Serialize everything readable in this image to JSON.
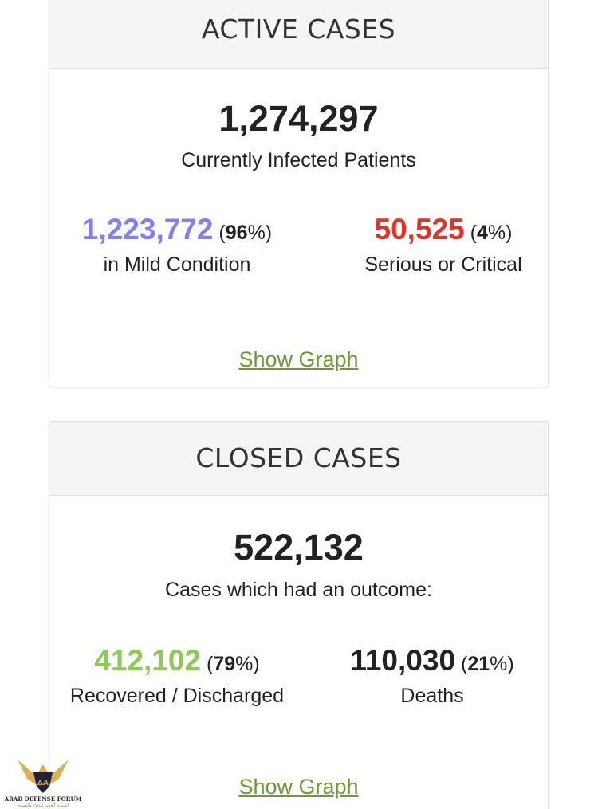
{
  "active_cases": {
    "heading": "ACTIVE CASES",
    "total": "1,274,297",
    "total_label": "Currently Infected Patients",
    "mild": {
      "value": "1,223,772",
      "pct_open": "(",
      "pct_number": "96",
      "pct_close": "%)",
      "label": "in Mild Condition",
      "color": "#8080f0"
    },
    "serious": {
      "value": "50,525",
      "pct_open": "(",
      "pct_number": "4",
      "pct_close": "%)",
      "label": "Serious or Critical",
      "color": "#e0342a"
    },
    "show_graph": "Show Graph"
  },
  "closed_cases": {
    "heading": "CLOSED CASES",
    "total": "522,132",
    "total_label": "Cases which had an outcome:",
    "recovered": {
      "value": "412,102",
      "pct_open": "(",
      "pct_number": "79",
      "pct_close": "%)",
      "label": "Recovered / Discharged",
      "color": "#8aca55"
    },
    "deaths": {
      "value": "110,030",
      "pct_open": "(",
      "pct_number": "21",
      "pct_close": "%)",
      "label": "Deaths",
      "color": "#222222"
    },
    "show_graph": "Show Graph"
  },
  "watermark": {
    "icon": "arab-defense-forum-logo",
    "text": "ARAB DEFENSE FORUM"
  },
  "colors": {
    "link": "#6b9a34",
    "heading_bg": "#f5f5f5",
    "border": "#dddddd"
  }
}
